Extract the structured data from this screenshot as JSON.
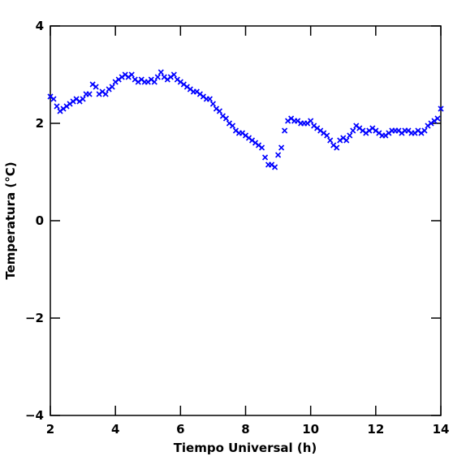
{
  "chart_data": {
    "type": "scatter",
    "xlabel": "Tiempo Universal (h)",
    "ylabel": "Temperatura (°C)",
    "xlim": [
      2,
      14
    ],
    "ylim": [
      -4,
      4
    ],
    "xticks": [
      2,
      4,
      6,
      8,
      10,
      12,
      14
    ],
    "yticks": [
      {
        "value": -4,
        "label": "−4"
      },
      {
        "value": -2,
        "label": "−2"
      },
      0,
      2,
      4
    ],
    "marker": "x",
    "series": [
      {
        "color": "#0000ff",
        "x": [
          2.0,
          2.1,
          2.2,
          2.3,
          2.4,
          2.5,
          2.6,
          2.7,
          2.8,
          2.9,
          3.0,
          3.1,
          3.2,
          3.3,
          3.4,
          3.5,
          3.6,
          3.7,
          3.8,
          3.9,
          4.0,
          4.1,
          4.2,
          4.3,
          4.4,
          4.5,
          4.6,
          4.7,
          4.8,
          4.9,
          5.0,
          5.1,
          5.2,
          5.3,
          5.4,
          5.5,
          5.6,
          5.7,
          5.8,
          5.9,
          6.0,
          6.1,
          6.2,
          6.3,
          6.4,
          6.5,
          6.6,
          6.7,
          6.8,
          6.9,
          7.0,
          7.1,
          7.2,
          7.3,
          7.4,
          7.5,
          7.6,
          7.7,
          7.8,
          7.9,
          8.0,
          8.1,
          8.2,
          8.3,
          8.4,
          8.5,
          8.6,
          8.7,
          8.8,
          8.9,
          9.0,
          9.1,
          9.2,
          9.3,
          9.4,
          9.5,
          9.6,
          9.7,
          9.8,
          9.9,
          10.0,
          10.1,
          10.2,
          10.3,
          10.4,
          10.5,
          10.6,
          10.7,
          10.8,
          10.9,
          11.0,
          11.1,
          11.2,
          11.3,
          11.4,
          11.5,
          11.6,
          11.7,
          11.8,
          11.9,
          12.0,
          12.1,
          12.2,
          12.3,
          12.4,
          12.5,
          12.6,
          12.7,
          12.8,
          12.9,
          13.0,
          13.1,
          13.2,
          13.3,
          13.4,
          13.5,
          13.6,
          13.7,
          13.8,
          13.9,
          14.0
        ],
        "values": [
          2.55,
          2.5,
          2.35,
          2.25,
          2.3,
          2.35,
          2.4,
          2.45,
          2.5,
          2.45,
          2.5,
          2.6,
          2.6,
          2.8,
          2.75,
          2.6,
          2.65,
          2.6,
          2.7,
          2.75,
          2.85,
          2.9,
          2.95,
          3.0,
          2.95,
          3.0,
          2.9,
          2.85,
          2.9,
          2.85,
          2.85,
          2.9,
          2.85,
          2.95,
          3.05,
          2.95,
          2.9,
          2.95,
          3.0,
          2.9,
          2.85,
          2.8,
          2.75,
          2.7,
          2.65,
          2.65,
          2.6,
          2.55,
          2.5,
          2.5,
          2.4,
          2.3,
          2.25,
          2.15,
          2.1,
          2.0,
          1.95,
          1.85,
          1.8,
          1.8,
          1.75,
          1.7,
          1.65,
          1.6,
          1.55,
          1.5,
          1.3,
          1.15,
          1.15,
          1.1,
          1.35,
          1.5,
          1.85,
          2.05,
          2.1,
          2.05,
          2.05,
          2.0,
          2.0,
          2.0,
          2.05,
          1.95,
          1.9,
          1.85,
          1.8,
          1.75,
          1.65,
          1.55,
          1.5,
          1.65,
          1.7,
          1.65,
          1.75,
          1.85,
          1.95,
          1.9,
          1.85,
          1.8,
          1.85,
          1.9,
          1.85,
          1.8,
          1.75,
          1.75,
          1.8,
          1.85,
          1.85,
          1.85,
          1.8,
          1.85,
          1.85,
          1.8,
          1.8,
          1.85,
          1.8,
          1.85,
          1.95,
          2.0,
          2.05,
          2.1,
          2.3
        ]
      }
    ]
  }
}
